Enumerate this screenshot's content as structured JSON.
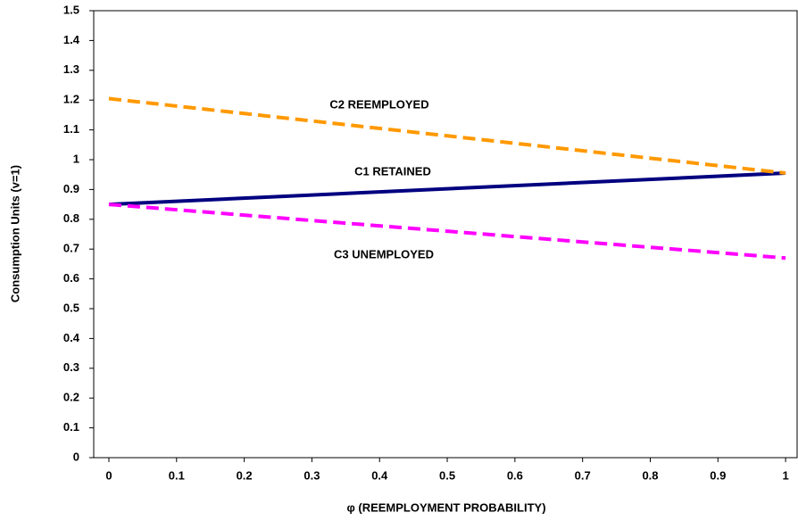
{
  "chart_data": {
    "type": "line",
    "x_label": "φ (REEMPLOYMENT PROBABILITY)",
    "y_label": "Consumption Units (v=1)",
    "x": [
      0,
      1
    ],
    "series": [
      {
        "name": "C1 RETAINED",
        "color": "#000080",
        "dashed": false,
        "values": [
          0.85,
          0.955
        ]
      },
      {
        "name": "C2 REEMPLOYED",
        "color": "#ff9900",
        "dashed": true,
        "values": [
          1.205,
          0.955
        ]
      },
      {
        "name": "C3 UNEMPLOYED",
        "color": "#ff00ff",
        "dashed": true,
        "values": [
          0.85,
          0.67
        ]
      }
    ],
    "xlim": [
      -0.0224,
      1.017
    ],
    "xticks": [
      0,
      0.1,
      0.2,
      0.3,
      0.4,
      0.5,
      0.6,
      0.7,
      0.8,
      0.9,
      1
    ],
    "ylim": [
      0,
      1.5
    ],
    "yticks": [
      0,
      0.1,
      0.2,
      0.3,
      0.4,
      0.5,
      0.6,
      0.7,
      0.8,
      0.9,
      1,
      1.1,
      1.2,
      1.3,
      1.4,
      1.5
    ],
    "grid": false
  }
}
